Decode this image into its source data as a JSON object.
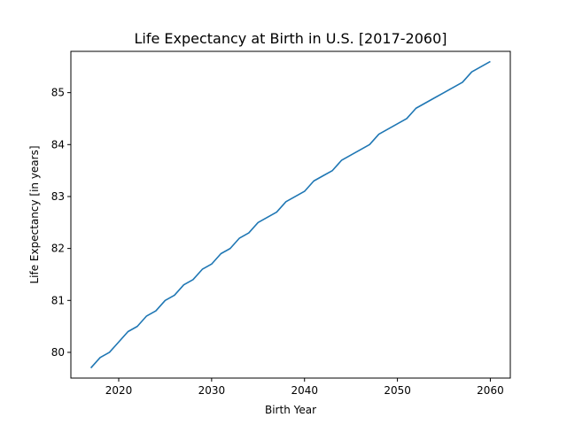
{
  "chart_data": {
    "type": "line",
    "title": "Life Expectancy at Birth in U.S. [2017-2060]",
    "xlabel": "Birth Year",
    "ylabel": "Life Expectancy [in years]",
    "xlim": [
      2014.85,
      2062.15
    ],
    "ylim": [
      79.505,
      85.795
    ],
    "xticks": [
      2020,
      2030,
      2040,
      2050,
      2060
    ],
    "yticks": [
      80,
      81,
      82,
      83,
      84,
      85
    ],
    "grid": false,
    "legend": "none",
    "series": [
      {
        "color": "#1f77b4",
        "x": [
          2017,
          2018,
          2019,
          2020,
          2021,
          2022,
          2023,
          2024,
          2025,
          2026,
          2027,
          2028,
          2029,
          2030,
          2031,
          2032,
          2033,
          2034,
          2035,
          2036,
          2037,
          2038,
          2039,
          2040,
          2041,
          2042,
          2043,
          2044,
          2045,
          2046,
          2047,
          2048,
          2049,
          2050,
          2051,
          2052,
          2053,
          2054,
          2055,
          2056,
          2057,
          2058,
          2059,
          2060
        ],
        "values": [
          79.7,
          79.9,
          80.0,
          80.2,
          80.4,
          80.5,
          80.7,
          80.8,
          81.0,
          81.1,
          81.3,
          81.4,
          81.6,
          81.7,
          81.9,
          82.0,
          82.2,
          82.3,
          82.5,
          82.6,
          82.7,
          82.9,
          83.0,
          83.1,
          83.3,
          83.4,
          83.5,
          83.7,
          83.8,
          83.9,
          84.0,
          84.2,
          84.3,
          84.4,
          84.5,
          84.7,
          84.8,
          84.9,
          85.0,
          85.1,
          85.2,
          85.4,
          85.5,
          85.6
        ]
      }
    ]
  }
}
